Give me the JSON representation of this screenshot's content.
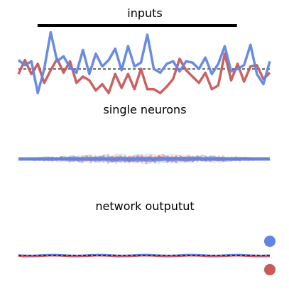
{
  "chart_data": [
    {
      "type": "line",
      "title": "inputs",
      "x": [
        1,
        2,
        3,
        4,
        5,
        6,
        7,
        8,
        9,
        10,
        11,
        12,
        13,
        14,
        15,
        16,
        17,
        18,
        19,
        20,
        21,
        22,
        23,
        24,
        25,
        26,
        27,
        28,
        29,
        30,
        31,
        32,
        33,
        34,
        35,
        36,
        37,
        38,
        39,
        40
      ],
      "series": [
        {
          "color": "#6285e0",
          "values": [
            0.35,
            0.15,
            0.3,
            -0.95,
            0.0,
            1.45,
            0.3,
            0.5,
            0.05,
            -0.15,
            0.75,
            -0.2,
            0.6,
            0.1,
            0.35,
            0.8,
            -0.05,
            0.9,
            0.1,
            0.25,
            1.35,
            0.0,
            -0.15,
            0.2,
            0.3,
            -0.1,
            0.3,
            0.25,
            0.0,
            0.45,
            -0.2,
            0.2,
            0.9,
            -0.1,
            0.0,
            0.15,
            0.95,
            -0.2,
            -0.6,
            0.3
          ]
        },
        {
          "color": "#c85a5a",
          "values": [
            -0.2,
            0.35,
            -0.2,
            0.2,
            -0.55,
            -0.05,
            0.4,
            -0.15,
            0.3,
            -0.55,
            -0.3,
            -0.45,
            -0.85,
            -0.6,
            -0.95,
            -0.2,
            -0.75,
            -0.2,
            -0.8,
            0.0,
            -0.8,
            -0.8,
            -0.95,
            -0.7,
            -0.4,
            0.4,
            -0.05,
            -0.3,
            -0.55,
            -0.15,
            -0.8,
            -0.65,
            0.6,
            -0.45,
            0.2,
            -0.5,
            0.1,
            0.15,
            -0.4,
            -0.15
          ]
        }
      ],
      "baseline": 0,
      "ylim": [
        -1.2,
        1.6
      ],
      "bar_span": [
        0.13,
        0.82
      ],
      "grid": false
    },
    {
      "type": "area",
      "title": "single neurons",
      "series": [
        {
          "color": "#c85a5a",
          "band": "+/-0.18"
        },
        {
          "color": "#6285e0",
          "band": "+/-0.15"
        }
      ],
      "baseline": 0,
      "grid": false
    },
    {
      "type": "line",
      "title": "network outputut",
      "series": [
        {
          "color": "#6285e0",
          "target": 1
        },
        {
          "color": "#c85a5a",
          "target": -1
        }
      ],
      "baseline": 0,
      "ylim": [
        -1.5,
        1.5
      ],
      "grid": false
    }
  ]
}
